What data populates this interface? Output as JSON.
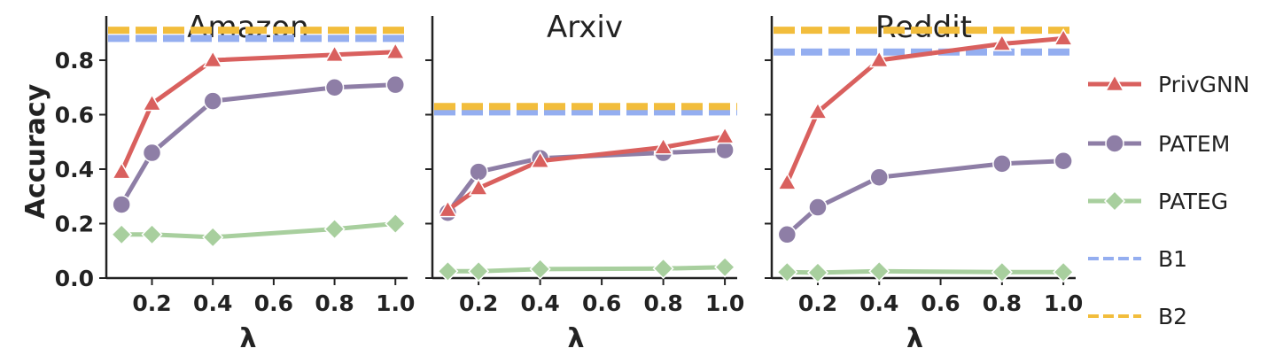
{
  "chart_data": {
    "type": "line",
    "ylabel": "Accuracy",
    "ylim": [
      0,
      0.93
    ],
    "yticks": [
      "0.0",
      "0.2",
      "0.4",
      "0.6",
      "0.8"
    ],
    "xlim": [
      0.05,
      1.04
    ],
    "xticks": [
      "0.2",
      "0.4",
      "0.6",
      "0.8",
      "1.0"
    ],
    "xlabel": "λ",
    "grid": false,
    "legend_placement": "right",
    "colors": {
      "PrivGNN": "#d9605e",
      "PATEM": "#8e7ea6",
      "PATEG": "#a8cf9e",
      "B1": "#94aef0",
      "B2": "#f2bd3c"
    },
    "legend": [
      {
        "name": "PrivGNN",
        "marker": "triangle",
        "style": "solid"
      },
      {
        "name": "PATEM",
        "marker": "circle",
        "style": "solid"
      },
      {
        "name": "PATEG",
        "marker": "diamond",
        "style": "solid"
      },
      {
        "name": "B1",
        "marker": "none",
        "style": "dashed"
      },
      {
        "name": "B2",
        "marker": "none",
        "style": "dashed"
      }
    ],
    "panels": [
      {
        "title": "Amazon",
        "x": [
          0.1,
          0.2,
          0.4,
          0.8,
          1.0
        ],
        "series": [
          {
            "name": "PrivGNN",
            "values": [
              0.39,
              0.64,
              0.8,
              0.82,
              0.83
            ]
          },
          {
            "name": "PATEM",
            "values": [
              0.27,
              0.46,
              0.65,
              0.7,
              0.71
            ]
          },
          {
            "name": "PATEG",
            "values": [
              0.16,
              0.16,
              0.15,
              0.18,
              0.2
            ]
          }
        ],
        "baselines": [
          {
            "name": "B1",
            "value": 0.88
          },
          {
            "name": "B2",
            "value": 0.91
          }
        ]
      },
      {
        "title": "Arxiv",
        "x": [
          0.1,
          0.2,
          0.4,
          0.8,
          1.0
        ],
        "series": [
          {
            "name": "PrivGNN",
            "values": [
              0.25,
              0.33,
              0.43,
              0.48,
              0.52
            ]
          },
          {
            "name": "PATEM",
            "values": [
              0.24,
              0.39,
              0.44,
              0.46,
              0.47
            ]
          },
          {
            "name": "PATEG",
            "values": [
              0.025,
              0.025,
              0.033,
              0.035,
              0.04
            ]
          }
        ],
        "baselines": [
          {
            "name": "B1",
            "value": 0.61
          },
          {
            "name": "B2",
            "value": 0.63
          }
        ]
      },
      {
        "title": "Reddit",
        "x": [
          0.1,
          0.2,
          0.4,
          0.8,
          1.0
        ],
        "series": [
          {
            "name": "PrivGNN",
            "values": [
              0.35,
              0.61,
              0.8,
              0.86,
              0.88
            ]
          },
          {
            "name": "PATEM",
            "values": [
              0.16,
              0.26,
              0.37,
              0.42,
              0.43
            ]
          },
          {
            "name": "PATEG",
            "values": [
              0.022,
              0.02,
              0.025,
              0.022,
              0.022
            ]
          }
        ],
        "baselines": [
          {
            "name": "B1",
            "value": 0.83
          },
          {
            "name": "B2",
            "value": 0.91
          }
        ]
      }
    ]
  }
}
